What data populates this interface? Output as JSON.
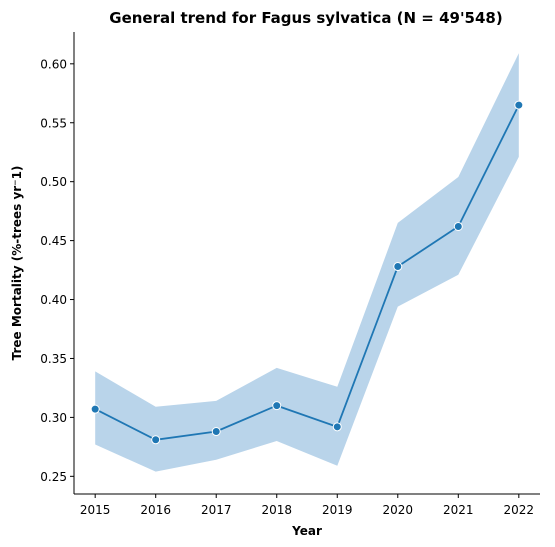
{
  "chart_data": {
    "type": "line",
    "title": "General trend for Fagus sylvatica  (N = 49'548)",
    "xlabel": "Year",
    "ylabel": "Tree Mortality (%-trees yr⁻1)",
    "x": [
      2015,
      2016,
      2017,
      2018,
      2019,
      2020,
      2021,
      2022
    ],
    "x_tick_labels": [
      "2015",
      "2016",
      "2017",
      "2018",
      "2019",
      "2020",
      "2021",
      "2022"
    ],
    "y_ticks": [
      0.25,
      0.3,
      0.35,
      0.4,
      0.45,
      0.5,
      0.55,
      0.6
    ],
    "y_tick_labels": [
      "0.25",
      "0.30",
      "0.35",
      "0.40",
      "0.45",
      "0.50",
      "0.55",
      "0.60"
    ],
    "xlim": [
      2014.65,
      2022.35
    ],
    "ylim": [
      0.235,
      0.627
    ],
    "grid": false,
    "series": [
      {
        "values": [
          0.307,
          0.281,
          0.288,
          0.31,
          0.292,
          0.428,
          0.462,
          0.565
        ],
        "ci_lower": [
          0.277,
          0.254,
          0.264,
          0.28,
          0.259,
          0.394,
          0.421,
          0.521
        ],
        "ci_upper": [
          0.339,
          0.309,
          0.314,
          0.342,
          0.326,
          0.465,
          0.504,
          0.609
        ],
        "color": "#1f77b4",
        "band_color": "#b9d4ea"
      }
    ]
  }
}
